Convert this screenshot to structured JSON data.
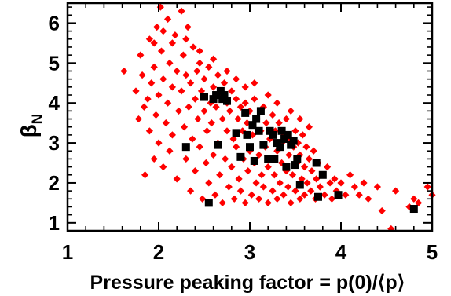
{
  "chart_data": {
    "type": "scatter",
    "xlabel": "Pressure peaking factor = p(0)/⟨p⟩",
    "ylabel_symbol": "β",
    "ylabel_subscript": "N",
    "xlim": [
      1,
      5
    ],
    "ylim": [
      0.8,
      6.5
    ],
    "x_ticks": [
      1,
      2,
      3,
      4,
      5
    ],
    "y_ticks": [
      1,
      2,
      3,
      4,
      5,
      6
    ],
    "x_tick_labels": [
      "1",
      "2",
      "3",
      "4",
      "5"
    ],
    "y_tick_labels": [
      "1",
      "2",
      "3",
      "4",
      "5",
      "6"
    ],
    "grid": false,
    "series": [
      {
        "marker": "diamond",
        "color": "#ff0000",
        "points": [
          [
            1.62,
            4.8
          ],
          [
            1.75,
            4.3
          ],
          [
            1.78,
            3.6
          ],
          [
            1.8,
            5.2
          ],
          [
            1.82,
            4.7
          ],
          [
            1.84,
            3.9
          ],
          [
            1.85,
            2.2
          ],
          [
            1.88,
            4.1
          ],
          [
            1.9,
            5.6
          ],
          [
            1.9,
            3.3
          ],
          [
            1.92,
            4.5
          ],
          [
            1.95,
            4.9
          ],
          [
            1.95,
            2.6
          ],
          [
            1.97,
            3.7
          ],
          [
            1.98,
            5.9
          ],
          [
            2.0,
            4.2
          ],
          [
            2.0,
            3.0
          ],
          [
            2.02,
            6.4
          ],
          [
            2.03,
            5.3
          ],
          [
            2.05,
            4.6
          ],
          [
            2.05,
            2.4
          ],
          [
            2.08,
            3.5
          ],
          [
            2.1,
            6.1
          ],
          [
            2.1,
            4.0
          ],
          [
            2.12,
            5.0
          ],
          [
            2.12,
            2.8
          ],
          [
            2.15,
            4.4
          ],
          [
            2.15,
            3.2
          ],
          [
            2.18,
            5.7
          ],
          [
            2.2,
            4.8
          ],
          [
            2.2,
            2.1
          ],
          [
            2.22,
            3.8
          ],
          [
            2.25,
            6.3
          ],
          [
            2.25,
            4.3
          ],
          [
            2.27,
            5.2
          ],
          [
            2.28,
            3.4
          ],
          [
            2.3,
            4.7
          ],
          [
            2.3,
            2.6
          ],
          [
            2.32,
            5.9
          ],
          [
            2.33,
            3.9
          ],
          [
            2.35,
            4.5
          ],
          [
            2.35,
            1.8
          ],
          [
            2.37,
            3.1
          ],
          [
            2.38,
            5.4
          ],
          [
            2.4,
            4.1
          ],
          [
            2.4,
            2.3
          ],
          [
            2.42,
            4.8
          ],
          [
            2.43,
            3.6
          ],
          [
            2.45,
            5.0
          ],
          [
            2.45,
            2.9
          ],
          [
            2.47,
            4.3
          ],
          [
            2.48,
            1.6
          ],
          [
            2.5,
            3.8
          ],
          [
            2.5,
            4.6
          ],
          [
            2.52,
            2.5
          ],
          [
            2.53,
            3.3
          ],
          [
            2.55,
            4.9
          ],
          [
            2.55,
            2.0
          ],
          [
            2.57,
            4.0
          ],
          [
            2.58,
            3.5
          ],
          [
            2.6,
            4.4
          ],
          [
            2.6,
            2.7
          ],
          [
            2.62,
            1.7
          ],
          [
            2.63,
            3.9
          ],
          [
            2.65,
            4.7
          ],
          [
            2.65,
            3.0
          ],
          [
            2.67,
            2.2
          ],
          [
            2.68,
            4.2
          ],
          [
            2.7,
            3.6
          ],
          [
            2.7,
            1.5
          ],
          [
            2.72,
            4.5
          ],
          [
            2.73,
            2.6
          ],
          [
            2.75,
            3.3
          ],
          [
            2.75,
            4.0
          ],
          [
            2.77,
            1.9
          ],
          [
            2.78,
            3.8
          ],
          [
            2.8,
            4.3
          ],
          [
            2.8,
            2.4
          ],
          [
            2.82,
            3.1
          ],
          [
            2.83,
            1.6
          ],
          [
            2.85,
            4.1
          ],
          [
            2.85,
            2.9
          ],
          [
            2.87,
            3.6
          ],
          [
            2.88,
            2.1
          ],
          [
            2.9,
            3.9
          ],
          [
            2.9,
            1.8
          ],
          [
            2.92,
            3.3
          ],
          [
            2.93,
            2.6
          ],
          [
            2.95,
            4.0
          ],
          [
            2.95,
            1.5
          ],
          [
            2.97,
            3.5
          ],
          [
            2.98,
            2.3
          ],
          [
            3.0,
            3.8
          ],
          [
            3.0,
            2.8
          ],
          [
            3.02,
            1.7
          ],
          [
            3.03,
            3.2
          ],
          [
            3.05,
            2.5
          ],
          [
            3.05,
            4.1
          ],
          [
            3.07,
            2.0
          ],
          [
            3.08,
            3.6
          ],
          [
            3.1,
            2.7
          ],
          [
            3.1,
            1.6
          ],
          [
            3.12,
            3.3
          ],
          [
            3.13,
            2.2
          ],
          [
            3.15,
            3.9
          ],
          [
            3.15,
            1.9
          ],
          [
            3.17,
            2.9
          ],
          [
            3.18,
            3.5
          ],
          [
            3.2,
            2.4
          ],
          [
            3.2,
            1.5
          ],
          [
            3.22,
            3.1
          ],
          [
            3.23,
            2.6
          ],
          [
            3.25,
            3.7
          ],
          [
            3.25,
            1.8
          ],
          [
            3.27,
            2.2
          ],
          [
            3.28,
            3.3
          ],
          [
            3.3,
            2.8
          ],
          [
            3.3,
            1.6
          ],
          [
            3.32,
            3.5
          ],
          [
            3.33,
            2.0
          ],
          [
            3.35,
            3.0
          ],
          [
            3.35,
            2.5
          ],
          [
            3.37,
            1.7
          ],
          [
            3.38,
            3.2
          ],
          [
            3.4,
            2.3
          ],
          [
            3.4,
            3.6
          ],
          [
            3.42,
            1.9
          ],
          [
            3.43,
            2.7
          ],
          [
            3.45,
            3.1
          ],
          [
            3.45,
            1.5
          ],
          [
            3.47,
            2.2
          ],
          [
            3.48,
            2.9
          ],
          [
            3.5,
            3.3
          ],
          [
            3.5,
            1.8
          ],
          [
            3.52,
            2.5
          ],
          [
            3.53,
            3.0
          ],
          [
            3.55,
            1.6
          ],
          [
            3.55,
            2.7
          ],
          [
            3.57,
            2.1
          ],
          [
            3.58,
            3.2
          ],
          [
            3.6,
            2.4
          ],
          [
            3.6,
            1.7
          ],
          [
            3.62,
            2.9
          ],
          [
            3.63,
            2.0
          ],
          [
            3.65,
            2.6
          ],
          [
            3.67,
            1.8
          ],
          [
            3.68,
            2.3
          ],
          [
            3.7,
            2.8
          ],
          [
            3.72,
            1.6
          ],
          [
            3.73,
            2.1
          ],
          [
            3.75,
            2.5
          ],
          [
            3.77,
            1.9
          ],
          [
            3.8,
            2.2
          ],
          [
            3.82,
            1.7
          ],
          [
            3.85,
            2.4
          ],
          [
            3.88,
            2.0
          ],
          [
            3.9,
            1.6
          ],
          [
            3.93,
            2.1
          ],
          [
            3.95,
            1.8
          ],
          [
            4.0,
            2.0
          ],
          [
            4.05,
            1.7
          ],
          [
            4.1,
            2.2
          ],
          [
            4.15,
            1.9
          ],
          [
            4.2,
            1.7
          ],
          [
            4.25,
            2.0
          ],
          [
            4.3,
            1.6
          ],
          [
            4.4,
            1.9
          ],
          [
            4.45,
            1.3
          ],
          [
            4.6,
            1.8
          ],
          [
            4.75,
            1.4
          ],
          [
            4.8,
            1.6
          ],
          [
            4.85,
            1.5
          ],
          [
            4.95,
            1.9
          ],
          [
            5.0,
            1.7
          ],
          [
            4.55,
            0.85
          ],
          [
            2.45,
            5.3
          ],
          [
            2.6,
            5.1
          ],
          [
            2.75,
            4.8
          ],
          [
            2.85,
            4.6
          ],
          [
            2.95,
            4.4
          ],
          [
            3.05,
            4.5
          ],
          [
            3.2,
            4.2
          ],
          [
            3.3,
            4.0
          ],
          [
            3.45,
            3.8
          ],
          [
            3.55,
            3.6
          ],
          [
            3.65,
            3.4
          ],
          [
            2.15,
            5.5
          ],
          [
            2.05,
            5.8
          ],
          [
            1.95,
            5.5
          ],
          [
            2.3,
            5.6
          ]
        ]
      },
      {
        "marker": "square",
        "color": "#000000",
        "points": [
          [
            2.3,
            2.9
          ],
          [
            2.5,
            4.15
          ],
          [
            2.55,
            1.5
          ],
          [
            2.6,
            4.1
          ],
          [
            2.63,
            4.2
          ],
          [
            2.65,
            2.95
          ],
          [
            2.68,
            4.3
          ],
          [
            2.7,
            4.1
          ],
          [
            2.72,
            4.2
          ],
          [
            2.75,
            4.05
          ],
          [
            2.85,
            3.25
          ],
          [
            2.9,
            2.65
          ],
          [
            2.95,
            3.75
          ],
          [
            2.97,
            3.2
          ],
          [
            3.0,
            2.9
          ],
          [
            3.03,
            3.45
          ],
          [
            3.05,
            2.55
          ],
          [
            3.07,
            3.6
          ],
          [
            3.1,
            3.3
          ],
          [
            3.12,
            3.8
          ],
          [
            3.15,
            2.95
          ],
          [
            3.2,
            2.6
          ],
          [
            3.22,
            3.3
          ],
          [
            3.25,
            3.2
          ],
          [
            3.27,
            2.6
          ],
          [
            3.3,
            3.0
          ],
          [
            3.33,
            2.9
          ],
          [
            3.35,
            3.3
          ],
          [
            3.38,
            3.1
          ],
          [
            3.4,
            2.4
          ],
          [
            3.42,
            3.2
          ],
          [
            3.45,
            2.95
          ],
          [
            3.48,
            3.05
          ],
          [
            3.5,
            2.45
          ],
          [
            3.52,
            2.6
          ],
          [
            3.55,
            1.95
          ],
          [
            3.73,
            2.5
          ],
          [
            3.75,
            1.65
          ],
          [
            3.8,
            2.2
          ],
          [
            3.97,
            1.7
          ],
          [
            4.8,
            1.35
          ]
        ]
      }
    ]
  }
}
